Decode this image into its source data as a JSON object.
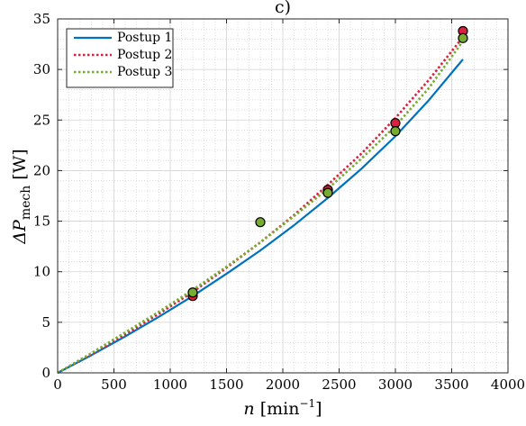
{
  "chart_data": {
    "type": "line",
    "title": "c)",
    "xlabel": {
      "italic": "n",
      "rest": " [min",
      "sup": "−1",
      "close": "]"
    },
    "ylabel": {
      "prefix": "ΔP",
      "sub": "mech",
      "suffix": " [W]"
    },
    "xlim": [
      0,
      4000
    ],
    "ylim": [
      0,
      35
    ],
    "xticks": [
      0,
      500,
      1000,
      1500,
      2000,
      2500,
      3000,
      3500,
      4000
    ],
    "yticks": [
      0,
      5,
      10,
      15,
      20,
      25,
      30,
      35
    ],
    "xtick_labels": [
      "0",
      "500",
      "1000",
      "1500",
      "2000",
      "2500",
      "3000",
      "3500",
      "4000"
    ],
    "ytick_labels": [
      "0",
      "5",
      "10",
      "15",
      "20",
      "25",
      "30",
      "35"
    ],
    "grid": true,
    "minor_grid": true,
    "legend_position": "top-left",
    "series": [
      {
        "name": "Postup 1",
        "color": "#0072BD",
        "style": "solid",
        "x": [
          0,
          300,
          600,
          900,
          1200,
          1500,
          1800,
          2100,
          2400,
          2700,
          3000,
          3300,
          3600
        ],
        "y": [
          0,
          1.75,
          3.6,
          5.55,
          7.6,
          9.8,
          12.1,
          14.6,
          17.3,
          20.2,
          23.4,
          27.0,
          31.0
        ]
      },
      {
        "name": "Postup 2",
        "color": "#D9213F",
        "style": "dotted",
        "x": [
          0,
          300,
          600,
          900,
          1200,
          1500,
          1800,
          2100,
          2400,
          2700,
          3000,
          3300,
          3600
        ],
        "y": [
          0,
          1.85,
          3.8,
          5.85,
          8.0,
          10.4,
          12.9,
          15.6,
          18.6,
          21.7,
          25.2,
          29.0,
          33.2
        ]
      },
      {
        "name": "Postup 3",
        "color": "#77AC30",
        "style": "dotted",
        "x": [
          0,
          300,
          600,
          900,
          1200,
          1500,
          1800,
          2100,
          2400,
          2700,
          3000,
          3300,
          3600
        ],
        "y": [
          0,
          1.95,
          4.0,
          6.05,
          8.2,
          10.5,
          12.9,
          15.5,
          18.2,
          21.2,
          24.4,
          28.2,
          32.8
        ]
      }
    ],
    "markers": [
      {
        "set": "Postup 2",
        "color": "#D9213F",
        "x": [
          1200,
          2400,
          3000,
          3600
        ],
        "y": [
          7.6,
          18.1,
          24.7,
          33.8
        ]
      },
      {
        "set": "Postup 3",
        "color": "#77AC30",
        "x": [
          1200,
          1800,
          2400,
          3000,
          3600
        ],
        "y": [
          7.95,
          14.9,
          17.8,
          23.9,
          33.1
        ]
      }
    ]
  }
}
